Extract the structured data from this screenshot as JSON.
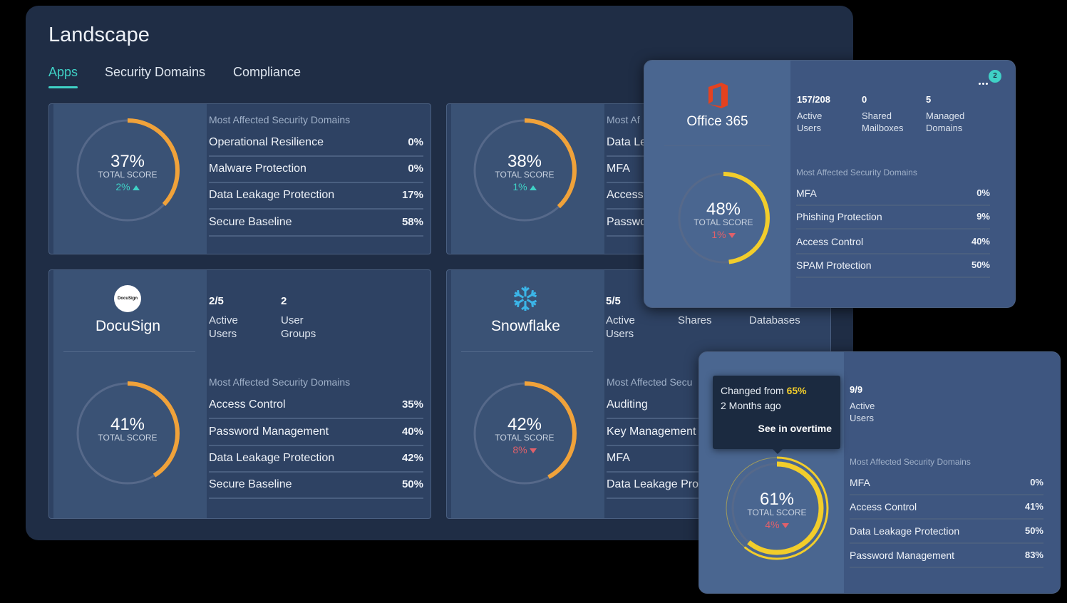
{
  "header": {
    "title": "Landscape",
    "tabs": [
      "Apps",
      "Security Domains",
      "Compliance"
    ]
  },
  "cards": [
    {
      "score": {
        "value": 37,
        "label": "37%"
      },
      "score_label": "TOTAL SCORE",
      "delta": "2%",
      "trend": "up",
      "domains_title": "Most Affected Security Domains",
      "domains": [
        {
          "name": "Operational Resilience",
          "value": "0%"
        },
        {
          "name": "Malware Protection",
          "value": "0%"
        },
        {
          "name": "Data Leakage Protection",
          "value": "17%"
        },
        {
          "name": "Secure Baseline",
          "value": "58%"
        }
      ]
    },
    {
      "score": {
        "value": 38,
        "label": "38%"
      },
      "score_label": "TOTAL SCORE",
      "delta": "1%",
      "trend": "up",
      "domains_title": "Most Af",
      "domains": [
        {
          "name": "Data Le"
        },
        {
          "name": "MFA"
        },
        {
          "name": "Access C"
        },
        {
          "name": "Passwo"
        }
      ]
    },
    {
      "logo": "DocuSign",
      "name": "DocuSign",
      "stats": [
        {
          "value": "2/5",
          "label": "Active Users"
        },
        {
          "value": "2",
          "label": "User Groups"
        }
      ],
      "score": {
        "value": 41,
        "label": "41%"
      },
      "score_label": "TOTAL SCORE",
      "domains_title": "Most Affected Security Domains",
      "domains": [
        {
          "name": "Access Control",
          "value": "35%"
        },
        {
          "name": "Password Management",
          "value": "40%"
        },
        {
          "name": "Data Leakage Protection",
          "value": "42%"
        },
        {
          "name": "Secure Baseline",
          "value": "50%"
        }
      ]
    },
    {
      "name": "Snowflake",
      "stats": [
        {
          "value": "5/5",
          "label": "Active Users"
        },
        {
          "label": "Shares"
        },
        {
          "label": "Databases"
        }
      ],
      "score": {
        "value": 42,
        "label": "42%"
      },
      "score_label": "TOTAL SCORE",
      "delta": "8%",
      "trend": "down",
      "domains_title": "Most Affected Secu",
      "domains": [
        {
          "name": "Auditing"
        },
        {
          "name": "Key Management"
        },
        {
          "name": "MFA"
        },
        {
          "name": "Data Leakage Prot"
        }
      ]
    },
    {
      "name": "Office 365",
      "badge": "2",
      "stats": [
        {
          "value": "157/208",
          "label": "Active Users"
        },
        {
          "value": "0",
          "label": "Shared Mailboxes"
        },
        {
          "value": "5",
          "label": "Managed Domains"
        }
      ],
      "score": {
        "value": 48,
        "label": "48%"
      },
      "score_label": "TOTAL SCORE",
      "delta": "1%",
      "trend": "down",
      "domains_title": "Most Affected Security Domains",
      "domains": [
        {
          "name": "MFA",
          "value": "0%"
        },
        {
          "name": "Phishing Protection",
          "value": "9%"
        },
        {
          "name": "Access Control",
          "value": "40%"
        },
        {
          "name": "SPAM Protection",
          "value": "50%"
        }
      ]
    },
    {
      "stats": [
        {
          "value": "9/9",
          "label": "Active Users"
        }
      ],
      "score": {
        "value": 61,
        "label": "61%"
      },
      "score_label": "TOTAL SCORE",
      "delta": "4%",
      "trend": "down",
      "domains_title": "Most Affected Security Domains",
      "domains": [
        {
          "name": "MFA",
          "value": "0%"
        },
        {
          "name": "Access Control",
          "value": "41%"
        },
        {
          "name": "Data Leakage Protection",
          "value": "50%"
        },
        {
          "name": "Password Management",
          "value": "83%"
        }
      ]
    }
  ],
  "tooltip": {
    "text": "Changed from",
    "highlight": "65%",
    "subtext": "2 Months ago",
    "link": "See in overtime"
  }
}
